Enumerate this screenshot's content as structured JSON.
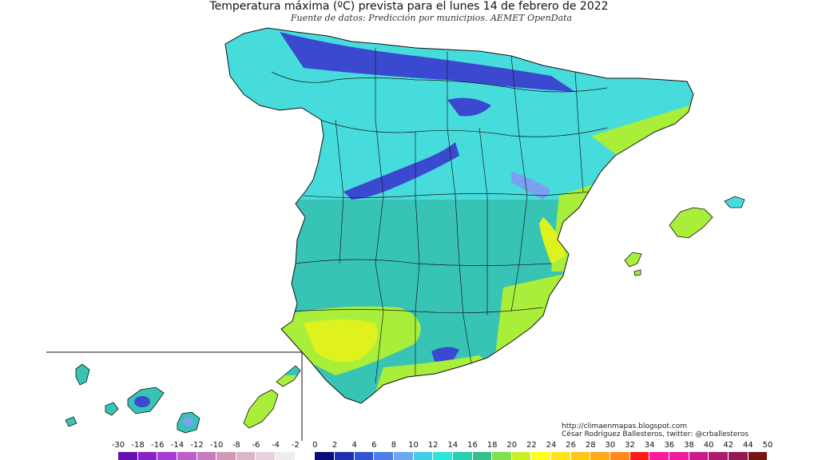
{
  "title": "Temperatura máxima (ºC) prevista para el lunes 14 de febrero de 2022",
  "subtitle": "Fuente de datos: Predicción por municipios. AEMET OpenData",
  "credits": {
    "url": "http://climaenmapas.blogspot.com",
    "author": "César Rodríguez Ballesteros, twitter: @crballesteros"
  },
  "legend": {
    "ticks": [
      "-30",
      "-18",
      "-16",
      "-14",
      "-12",
      "-10",
      "-8",
      "-6",
      "-4",
      "-2",
      "0",
      "2",
      "4",
      "6",
      "8",
      "10",
      "12",
      "14",
      "16",
      "18",
      "20",
      "22",
      "24",
      "26",
      "28",
      "30",
      "32",
      "34",
      "36",
      "38",
      "40",
      "42",
      "44",
      "50"
    ],
    "colors": [
      "#6a0dad",
      "#8b1fc8",
      "#a63ad6",
      "#bf5ec9",
      "#c97bbf",
      "#d09ab7",
      "#dab6c6",
      "#e6d2dc",
      "#f1ebee",
      "#ffffff",
      "#0a0a7a",
      "#1f2fb0",
      "#2f54d6",
      "#4d7fe8",
      "#6ca7f2",
      "#3fd0e8",
      "#2ee6d6",
      "#26d0b0",
      "#35c08a",
      "#7fe04a",
      "#c8f02a",
      "#ffff1a",
      "#ffe21a",
      "#ffc61a",
      "#ffa81a",
      "#ff8a1a",
      "#ff1a1a",
      "#ff1a9a",
      "#ee1a9f",
      "#cc1a88",
      "#b01a6e",
      "#921a52",
      "#7a1410"
    ]
  },
  "map_colors": {
    "north_plateau": "#46dcdc",
    "south_plateau": "#38c4b4",
    "mountains": "#3b49d0",
    "mild_coast": "#a9ee3a",
    "warm": "#dff21e",
    "lakes": "#7aa0f0"
  }
}
